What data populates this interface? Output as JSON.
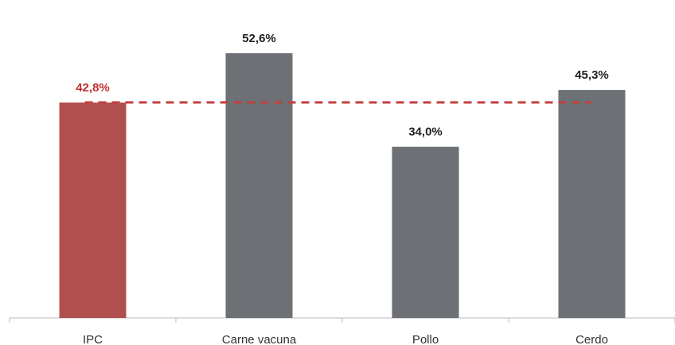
{
  "chart_data": {
    "type": "bar",
    "categories": [
      "IPC",
      "Carne vacuna",
      "Pollo",
      "Cerdo"
    ],
    "values": [
      42.8,
      52.6,
      34.0,
      45.3
    ],
    "value_labels": [
      "42,8%",
      "52,6%",
      "34,0%",
      "45,3%"
    ],
    "ylim": [
      0,
      60
    ],
    "reference_line": {
      "value": 42.8,
      "style": "dashed"
    },
    "grid": false,
    "legend": "none",
    "colors": {
      "highlight": "#b0504e",
      "bars": "#6d7175",
      "reference_line": "#c0423f",
      "highlight_label": "#c0302e",
      "labels": "#222222",
      "axis": "#bbbbbb"
    }
  }
}
